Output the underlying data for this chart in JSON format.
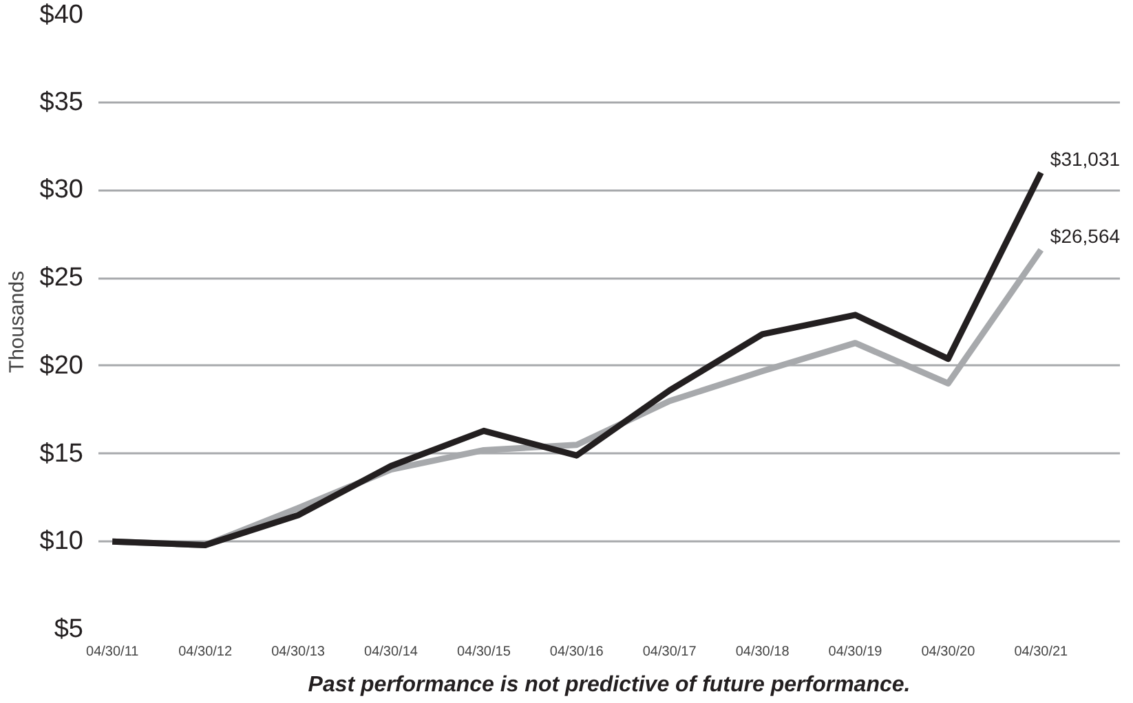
{
  "chart_data": {
    "type": "line",
    "ylabel": "Thousands",
    "categories": [
      "04/30/11",
      "04/30/12",
      "04/30/13",
      "04/30/14",
      "04/30/15",
      "04/30/16",
      "04/30/17",
      "04/30/18",
      "04/30/19",
      "04/30/20",
      "04/30/21"
    ],
    "series": [
      {
        "color": "#231f20",
        "values": [
          10.0,
          9.8,
          11.5,
          14.3,
          16.3,
          14.9,
          18.6,
          21.8,
          22.9,
          20.4,
          31.0
        ]
      },
      {
        "color": "#a7a9ac",
        "values": [
          10.0,
          9.8,
          11.9,
          14.1,
          15.2,
          15.5,
          18.0,
          19.7,
          21.3,
          19.0,
          26.6
        ]
      }
    ],
    "ylim": [
      5,
      40
    ],
    "yticks": [
      {
        "value": 5,
        "label": "$5"
      },
      {
        "value": 10,
        "label": "$10"
      },
      {
        "value": 15,
        "label": "$15"
      },
      {
        "value": 20,
        "label": "$20"
      },
      {
        "value": 25,
        "label": "$25"
      },
      {
        "value": 30,
        "label": "$30"
      },
      {
        "value": 35,
        "label": "$35"
      },
      {
        "value": 40,
        "label": "$40"
      }
    ],
    "grid": "y",
    "line_style": "solid",
    "marker": "none",
    "annotations": [
      {
        "text": "$31,031",
        "x": "04/30/21",
        "y": 31.0
      },
      {
        "text": "$26,564",
        "x": "04/30/21",
        "y": 26.6
      },
      "Past performance is not predictive of future performance."
    ]
  }
}
